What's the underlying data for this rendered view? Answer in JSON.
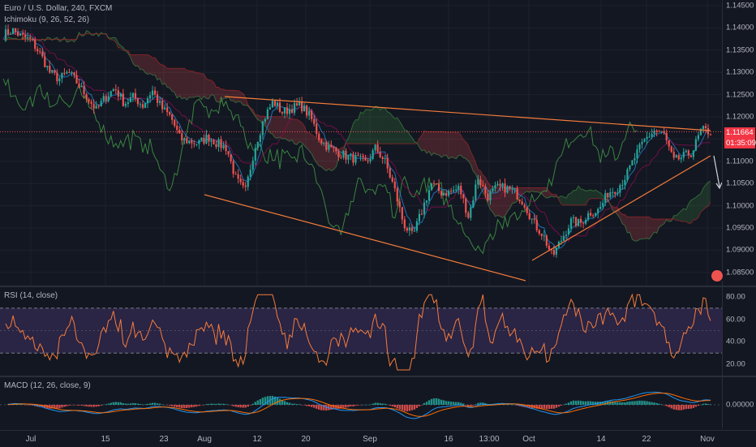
{
  "header": {
    "symbol": "Euro / U.S. Dollar, 240, FXCM",
    "indicator": "Ichimoku (9, 26, 52, 26)"
  },
  "price_axis": {
    "ticks": [
      "1.14500",
      "1.14000",
      "1.13500",
      "1.13000",
      "1.12500",
      "1.12000",
      "1.11500",
      "1.11000",
      "1.10500",
      "1.10000",
      "1.09500",
      "1.09000",
      "1.08500"
    ],
    "last_price": "1.11664",
    "countdown": "01:35:09"
  },
  "rsi": {
    "label": "RSI (14, close)",
    "ticks": [
      "80.00",
      "60.00",
      "40.00",
      "20.00"
    ]
  },
  "macd": {
    "label": "MACD (12, 26, close, 9)",
    "ticks": [
      "0.00000"
    ]
  },
  "time_axis": {
    "labels": [
      "Jul",
      "15",
      "23",
      "Aug",
      "12",
      "20",
      "Sep",
      "16",
      "13:00",
      "Oct",
      "14",
      "22",
      "Nov"
    ]
  },
  "colors": {
    "background": "#131722",
    "up_candle": "#26a69a",
    "down_candle": "#ef5350",
    "trendline": "#f57c3a",
    "rsi_line": "#f57c3a",
    "rsi_band": "#7e57c2",
    "macd_line": "#2196f3",
    "signal_line": "#ff6d00",
    "last_price_tag": "#f23645"
  },
  "chart_data": {
    "type": "line",
    "title": "Euro / U.S. Dollar, 240, FXCM",
    "ylim": [
      1.085,
      1.145
    ],
    "series": [
      {
        "values": [
          1.1385,
          1.1395,
          1.138,
          1.1372,
          1.134,
          1.13,
          1.1285,
          1.13,
          1.1275,
          1.1245,
          1.1215,
          1.1245,
          1.1265,
          1.123,
          1.1245,
          1.1225,
          1.126,
          1.122,
          1.12,
          1.115,
          1.1145,
          1.114,
          1.1155,
          1.114,
          1.113,
          1.106,
          1.103,
          1.113,
          1.1195,
          1.1235,
          1.121,
          1.122,
          1.1225,
          1.12,
          1.115,
          1.113,
          1.112,
          1.111,
          1.1105,
          1.1095,
          1.113,
          1.11,
          1.104,
          1.096,
          1.093,
          1.099,
          1.105,
          1.103,
          1.103,
          1.104,
          1.0975,
          1.1065,
          1.102,
          1.104,
          1.104,
          1.103,
          1.1005,
          1.096,
          1.0935,
          1.0885,
          1.0925,
          1.0965,
          1.096,
          1.0985,
          1.099,
          1.103,
          1.104,
          1.107,
          1.1115,
          1.115,
          1.117,
          1.116,
          1.11,
          1.111,
          1.112,
          1.117,
          1.1166
        ]
      }
    ]
  }
}
